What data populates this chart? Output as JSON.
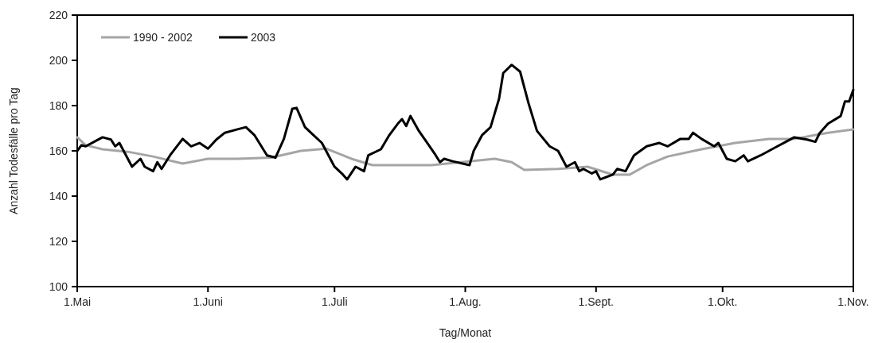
{
  "chart_data": {
    "type": "line",
    "xlabel": "Tag/Monat",
    "ylabel": "Anzahl Todesfälle pro Tag",
    "xlim": [
      "--05-01",
      "--11-01"
    ],
    "xticks": [
      {
        "value": "--05-01",
        "label": "1.Mai"
      },
      {
        "value": "--06-01",
        "label": "1.Juni"
      },
      {
        "value": "--07-01",
        "label": "1.Juli"
      },
      {
        "value": "--08-01",
        "label": "1.Aug."
      },
      {
        "value": "--09-01",
        "label": "1.Sept."
      },
      {
        "value": "--10-01",
        "label": "1.Okt."
      },
      {
        "value": "--11-01",
        "label": "1.Nov."
      }
    ],
    "ylim": [
      100,
      220
    ],
    "yticks": [
      100,
      120,
      140,
      160,
      180,
      200,
      220
    ],
    "grid": false,
    "legend": "top left",
    "marker": "none",
    "line_style": "solid",
    "series": [
      {
        "name": "1990 - 2002",
        "color": "#a8a4a4",
        "x": [
          "--05-01",
          "--05-03",
          "--05-07",
          "--05-13",
          "--05-19",
          "--05-26",
          "--06-01",
          "--06-08",
          "--06-16",
          "--06-23",
          "--06-29",
          "--07-05",
          "--07-10",
          "--07-16",
          "--07-24",
          "--07-31",
          "--08-08",
          "--08-12",
          "--08-15",
          "--08-23",
          "--08-30",
          "--09-05",
          "--09-09",
          "--09-13",
          "--09-18",
          "--09-26",
          "--10-04",
          "--10-12",
          "--10-18",
          "--10-26",
          "--11-01"
        ],
        "values": [
          166,
          162.5,
          160.7,
          159.6,
          157.5,
          154.4,
          156.5,
          156.5,
          157,
          160,
          161,
          156.5,
          153.7,
          153.7,
          153.7,
          155,
          156.5,
          155,
          151.6,
          152,
          153,
          149.5,
          149.5,
          153.7,
          157.5,
          160.7,
          163.5,
          165.3,
          165.3,
          168,
          169.5
        ]
      },
      {
        "name": "2003",
        "color": "#000000",
        "x": [
          "--05-01",
          "--05-02",
          "--05-03",
          "--05-05",
          "--05-07",
          "--05-09",
          "--05-10",
          "--05-11",
          "--05-12",
          "--05-14",
          "--05-16",
          "--05-17",
          "--05-19",
          "--05-20",
          "--05-21",
          "--05-23",
          "--05-26",
          "--05-28",
          "--05-30",
          "--06-01",
          "--06-03",
          "--06-05",
          "--06-08",
          "--06-10",
          "--06-12",
          "--06-15",
          "--06-17",
          "--06-19",
          "--06-21",
          "--06-22",
          "--06-24",
          "--06-26",
          "--06-28",
          "--06-30",
          "--07-01",
          "--07-03",
          "--07-04",
          "--07-06",
          "--07-08",
          "--07-09",
          "--07-12",
          "--07-14",
          "--07-16",
          "--07-17",
          "--07-18",
          "--07-19",
          "--07-21",
          "--07-23",
          "--07-25",
          "--07-26",
          "--07-27",
          "--07-29",
          "--08-02",
          "--08-03",
          "--08-05",
          "--08-07",
          "--08-09",
          "--08-10",
          "--08-12",
          "--08-14",
          "--08-16",
          "--08-18",
          "--08-21",
          "--08-23",
          "--08-25",
          "--08-27",
          "--08-28",
          "--08-29",
          "--08-31",
          "--09-01",
          "--09-02",
          "--09-05",
          "--09-06",
          "--09-08",
          "--09-10",
          "--09-13",
          "--09-16",
          "--09-18",
          "--09-21",
          "--09-23",
          "--09-24",
          "--09-26",
          "--09-29",
          "--09-30",
          "--10-02",
          "--10-04",
          "--10-06",
          "--10-07",
          "--10-10",
          "--10-12",
          "--10-14",
          "--10-16",
          "--10-18",
          "--10-21",
          "--10-23",
          "--10-24",
          "--10-26",
          "--10-29",
          "--10-30",
          "--10-31",
          "--11-01"
        ],
        "values": [
          160,
          162.5,
          162,
          164,
          166,
          165,
          162,
          163.5,
          160,
          153,
          156.5,
          153,
          151,
          155,
          152,
          158,
          165.3,
          162,
          163.5,
          161,
          165,
          168,
          169.5,
          170.5,
          167,
          158,
          157,
          165.3,
          178.6,
          179,
          170.5,
          167,
          163.5,
          156.5,
          153,
          149.5,
          147.4,
          153,
          151,
          158,
          160.7,
          167,
          172,
          174,
          171,
          175.4,
          168.8,
          163.5,
          158,
          155,
          156.5,
          155.4,
          153.7,
          160,
          167,
          170.5,
          183,
          194.4,
          198,
          195,
          181,
          168.8,
          162,
          160,
          153,
          155,
          151,
          152,
          150,
          151,
          147.4,
          149.5,
          152,
          151,
          158,
          162,
          163.5,
          162,
          165.3,
          165.3,
          168,
          165.3,
          162,
          163.5,
          156.5,
          155.4,
          158,
          155.4,
          158,
          160,
          162,
          164,
          166,
          165,
          164,
          167.8,
          172,
          175.4,
          181.8,
          181.8,
          187
        ]
      }
    ]
  }
}
